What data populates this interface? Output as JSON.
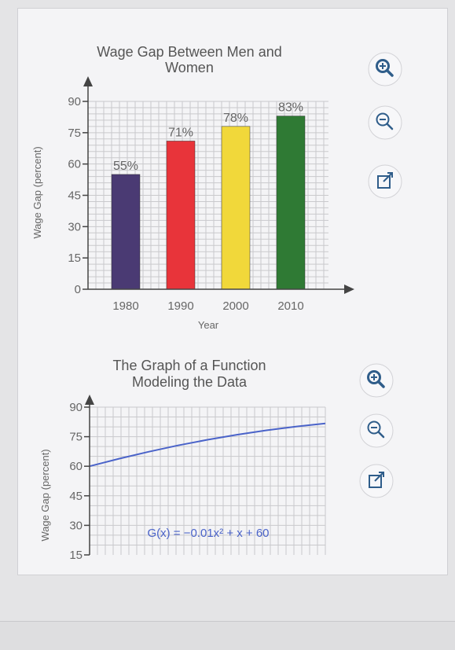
{
  "chart_data": [
    {
      "type": "bar",
      "title_lines": [
        "Wage Gap Between Men and",
        "Women"
      ],
      "categories": [
        "1980",
        "1990",
        "2000",
        "2010"
      ],
      "values": [
        55,
        71,
        78,
        83
      ],
      "data_labels": [
        "55%",
        "71%",
        "78%",
        "83%"
      ],
      "bar_colors": [
        "#4a3a73",
        "#e8343a",
        "#f1d83a",
        "#2f7a34"
      ],
      "xlabel": "Year",
      "ylabel": "Wage Gap (percent)",
      "ylim": [
        0,
        90
      ],
      "yticks": [
        "0",
        "15",
        "30",
        "45",
        "60",
        "75",
        "90"
      ],
      "grid": true
    },
    {
      "type": "line",
      "title_lines": [
        "The Graph of a Function",
        "Modeling the Data"
      ],
      "ylabel": "Wage Gap (percent)",
      "ylim": [
        15,
        90
      ],
      "xlim": [
        0,
        32
      ],
      "yticks": [
        "15",
        "30",
        "45",
        "60",
        "75",
        "90"
      ],
      "equation": "G(x) = −0.01x² + x + 60",
      "series": [
        {
          "x": [
            0,
            4,
            8,
            12,
            16,
            20,
            24,
            28,
            32
          ],
          "y": [
            60,
            63.84,
            67.36,
            70.56,
            73.44,
            76,
            78.24,
            80.16,
            81.76
          ]
        }
      ],
      "line_color": "#4a63c9",
      "grid": true
    }
  ],
  "controls": [
    {
      "zoom_in": "zoom-in",
      "zoom_out": "zoom-out",
      "popout": "pop-out"
    },
    {
      "zoom_in": "zoom-in",
      "zoom_out": "zoom-out",
      "popout": "pop-out"
    }
  ],
  "colors": {
    "accent": "#2f5d8a",
    "grid": "#c9c9cc"
  }
}
